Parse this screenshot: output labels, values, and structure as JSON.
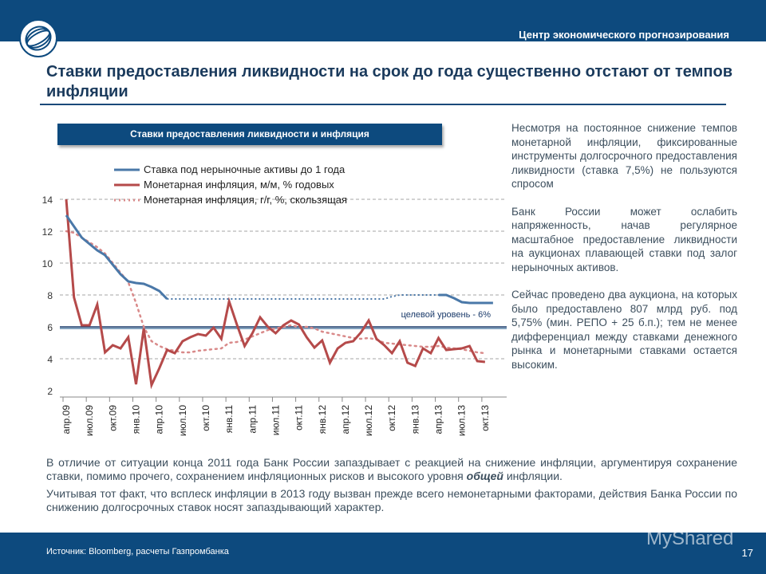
{
  "header": {
    "org": "Центр экономического прогнозирования"
  },
  "slide": {
    "title": "Ставки предоставления ликвидности на срок до года существенно отстают от темпов инфляции",
    "page": "17"
  },
  "chart_data": {
    "type": "line",
    "title": "Ставки предоставления  ликвидности и инфляция",
    "ylim": [
      2,
      14
    ],
    "yticks": [
      2,
      4,
      6,
      8,
      10,
      12,
      14
    ],
    "grid": true,
    "legend": "top",
    "x": [
      "апр.09",
      "май.09",
      "июн.09",
      "июл.09",
      "авг.09",
      "сен.09",
      "окт.09",
      "ноя.09",
      "дек.09",
      "янв.10",
      "фев.10",
      "мар.10",
      "апр.10",
      "май.10",
      "июн.10",
      "июл.10",
      "авг.10",
      "сен.10",
      "окт.10",
      "ноя.10",
      "дек.10",
      "янв.11",
      "фев.11",
      "мар.11",
      "апр.11",
      "май.11",
      "июн.11",
      "июл.11",
      "авг.11",
      "сен.11",
      "окт.11",
      "ноя.11",
      "дек.11",
      "янв.12",
      "фев.12",
      "мар.12",
      "апр.12",
      "май.12",
      "июн.12",
      "июл.12",
      "авг.12",
      "сен.12",
      "окт.12",
      "ноя.12",
      "дек.12",
      "янв.13",
      "фев.13",
      "мар.13",
      "апр.13",
      "май.13",
      "июн.13",
      "июл.13",
      "авг.13",
      "сен.13",
      "окт.13"
    ],
    "tick_labels": [
      "апр.09",
      "июл.09",
      "окт.09",
      "янв.10",
      "апр.10",
      "июл.10",
      "окт.10",
      "янв.11",
      "апр.11",
      "июл.11",
      "окт.11",
      "янв.12",
      "апр.12",
      "июл.12",
      "окт.12",
      "янв.13",
      "апр.13",
      "июл.13",
      "окт.13"
    ],
    "series": [
      {
        "name": "Ставка под нерыночные активы до 1 года",
        "color": "#4a78a8",
        "style": "solid",
        "dotted_range": [
          "май.10",
          "апр.13"
        ],
        "values": [
          13,
          12.3,
          11.6,
          11.2,
          10.8,
          10.5,
          9.9,
          9.3,
          8.85,
          8.75,
          8.7,
          8.5,
          8.25,
          7.75,
          7.75,
          7.75,
          7.75,
          7.75,
          7.75,
          7.75,
          7.75,
          7.75,
          7.75,
          7.75,
          7.75,
          7.75,
          7.75,
          7.75,
          7.75,
          7.75,
          7.75,
          7.75,
          7.75,
          7.75,
          7.75,
          7.75,
          7.75,
          7.75,
          7.75,
          7.75,
          7.75,
          7.75,
          7.9,
          8,
          8,
          8,
          8,
          8,
          8,
          8,
          7.8,
          7.55,
          7.5,
          7.5,
          7.5
        ]
      },
      {
        "name": "Монетарная инфляция, м/м, % годовых",
        "color": "#b54a4a",
        "style": "solid",
        "values": [
          14,
          7.85,
          6.1,
          6.1,
          7.4,
          4.4,
          4.85,
          4.65,
          5.35,
          2.4,
          5.9,
          2.35,
          3.4,
          4.55,
          4.35,
          5.1,
          5.35,
          5.55,
          5.45,
          5.95,
          5.25,
          7.6,
          6.15,
          4.8,
          5.6,
          6.6,
          6.0,
          5.6,
          6.1,
          6.4,
          6.15,
          5.35,
          4.7,
          5.15,
          3.75,
          4.65,
          5.0,
          5.1,
          5.65,
          6.4,
          5.25,
          4.85,
          4.35,
          5.1,
          3.75,
          3.55,
          4.65,
          4.35,
          5.3,
          4.55,
          4.6,
          4.65,
          4.8,
          3.85,
          3.8
        ]
      },
      {
        "name": "Монетарная инфляция, г/г, %, скользящая",
        "color": "#d98a8a",
        "style": "dotted",
        "values": [
          12,
          11.9,
          11.6,
          11.3,
          11.0,
          10.6,
          10.0,
          9.4,
          8.8,
          7.5,
          6.0,
          5.1,
          4.8,
          4.6,
          4.5,
          4.4,
          4.4,
          4.5,
          4.55,
          4.6,
          4.65,
          5.0,
          5.05,
          5.2,
          5.4,
          5.6,
          5.8,
          5.9,
          6.0,
          6.1,
          6.0,
          6.0,
          5.9,
          5.7,
          5.6,
          5.5,
          5.4,
          5.3,
          5.25,
          5.3,
          5.2,
          5.0,
          4.95,
          4.9,
          4.85,
          4.8,
          4.75,
          4.75,
          4.8,
          4.7,
          4.65,
          4.6,
          4.5,
          4.4,
          4.35
        ]
      }
    ],
    "target": {
      "label": "целевой уровень - 6%",
      "value": 6,
      "color": "#1a3a6a"
    }
  },
  "side": [
    "Несмотря на постоянное снижение темпов монетарной инфляции, фиксированные инструменты долгосрочного предоставления ликвидности (ставка 7,5%) не пользуются спросом",
    "Банк России может ослабить напряженность, начав регулярное масштабное предоставление ликвидности на аукционах плавающей ставки под залог нерыночных активов.",
    "Сейчас проведено два аукциона, на которых было предоставлено 807 млрд руб. под 5,75% (мин. РЕПО + 25 б.п.); тем не менее дифференциал между ставками денежного рынка и монетарными ставками остается высоким."
  ],
  "bottom": {
    "p1_a": "В отличие от ситуации конца 2011 года Банк России запаздывает с реакцией на снижение инфляции, аргументируя сохранение ставки, помимо прочего, сохранением инфляционных рисков и высокого уровня ",
    "p1_em": "общей",
    "p1_b": " инфляции.",
    "p2": "Учитывая тот факт, что всплеск инфляции в 2013 году вызван прежде всего немонетарными факторами, действия Банка России по снижению долгосрочных ставок носят запаздывающий характер."
  },
  "footer": {
    "source": "Источник: Bloomberg, расчеты Газпромбанка"
  },
  "watermark": "MyShared"
}
